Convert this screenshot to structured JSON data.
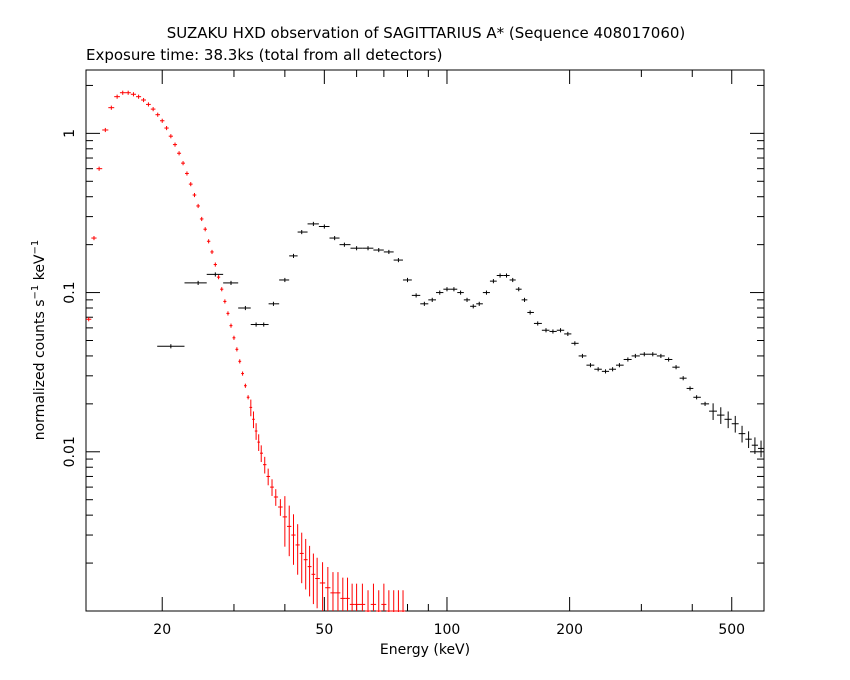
{
  "chart_data": {
    "type": "scatter",
    "title": "SUZAKU HXD observation of SAGITTARIUS A* (Sequence 408017060)",
    "subtitle": "Exposure time: 38.3ks (total from all detectors)",
    "xlabel": "Energy (keV)",
    "ylabel_main": "normalized counts s",
    "ylabel_sup1": "−1",
    "ylabel_mid": " keV",
    "ylabel_sup2": "−1",
    "x_scale": "log",
    "y_scale": "log",
    "xlim": [
      13,
      600
    ],
    "ylim": [
      0.001,
      2.5
    ],
    "x_ticks": [
      20,
      50,
      100,
      200,
      500
    ],
    "x_tick_labels": [
      "20",
      "50",
      "100",
      "200",
      "500"
    ],
    "y_ticks": [
      1,
      0.1,
      0.01
    ],
    "y_tick_labels": [
      "1",
      "0.1",
      "0.01"
    ],
    "grid": false,
    "series": [
      {
        "color": "#ff0000",
        "points": [
          [
            13.2,
            0.068
          ],
          [
            13.6,
            0.22
          ],
          [
            14.0,
            0.6
          ],
          [
            14.5,
            1.05
          ],
          [
            15.0,
            1.45
          ],
          [
            15.5,
            1.7
          ],
          [
            16.0,
            1.8
          ],
          [
            16.5,
            1.8
          ],
          [
            17.0,
            1.76
          ],
          [
            17.5,
            1.7
          ],
          [
            18.0,
            1.62
          ],
          [
            18.5,
            1.52
          ],
          [
            19.0,
            1.42
          ],
          [
            19.5,
            1.31
          ],
          [
            20.0,
            1.2
          ],
          [
            20.5,
            1.08
          ],
          [
            21.0,
            0.96
          ],
          [
            21.5,
            0.85
          ],
          [
            22.0,
            0.75
          ],
          [
            22.5,
            0.65
          ],
          [
            23.0,
            0.56
          ],
          [
            23.5,
            0.48
          ],
          [
            24.0,
            0.41
          ],
          [
            24.5,
            0.35
          ],
          [
            25.0,
            0.29
          ],
          [
            25.5,
            0.25
          ],
          [
            26.0,
            0.21
          ],
          [
            26.5,
            0.18
          ],
          [
            27.0,
            0.15
          ],
          [
            27.5,
            0.125
          ],
          [
            28.0,
            0.105
          ],
          [
            28.5,
            0.088
          ],
          [
            29.0,
            0.074
          ],
          [
            29.5,
            0.062
          ],
          [
            30.0,
            0.052
          ],
          [
            30.5,
            0.044
          ],
          [
            31.0,
            0.037
          ],
          [
            31.5,
            0.031
          ],
          [
            32.0,
            0.026
          ],
          [
            32.5,
            0.022
          ],
          [
            33.0,
            0.019
          ],
          [
            33.5,
            0.016
          ],
          [
            34.0,
            0.0135
          ],
          [
            34.5,
            0.0115
          ],
          [
            35.0,
            0.0098
          ],
          [
            35.7,
            0.0083
          ],
          [
            36.4,
            0.007
          ],
          [
            37.2,
            0.006
          ],
          [
            38.0,
            0.0052
          ],
          [
            39.0,
            0.0045
          ],
          [
            40.0,
            0.0039
          ],
          [
            41.0,
            0.0034
          ],
          [
            42.0,
            0.003
          ],
          [
            43.0,
            0.0026
          ],
          [
            44.0,
            0.0023
          ],
          [
            45.0,
            0.0021
          ],
          [
            46.0,
            0.0019
          ],
          [
            47.0,
            0.0017
          ],
          [
            48.0,
            0.0016
          ],
          [
            49.5,
            0.0015
          ],
          [
            51.0,
            0.0014
          ],
          [
            52.5,
            0.0013
          ],
          [
            54.0,
            0.0013
          ],
          [
            55.5,
            0.0012
          ],
          [
            57.0,
            0.0012
          ],
          [
            58.5,
            0.0011
          ],
          [
            60.0,
            0.0011
          ],
          [
            62.0,
            0.0011
          ],
          [
            64.0,
            0.001
          ],
          [
            66.0,
            0.0011
          ],
          [
            68.0,
            0.001
          ],
          [
            70.0,
            0.0011
          ],
          [
            72.0,
            0.001
          ],
          [
            74.0,
            0.001
          ],
          [
            76.0,
            0.001
          ],
          [
            78.0,
            0.001
          ]
        ]
      },
      {
        "color": "#000000",
        "points": [
          [
            21.0,
            0.046
          ],
          [
            24.5,
            0.115
          ],
          [
            27.0,
            0.13
          ],
          [
            29.5,
            0.115
          ],
          [
            32.0,
            0.08
          ],
          [
            34.0,
            0.063
          ],
          [
            35.5,
            0.063
          ],
          [
            37.5,
            0.085
          ],
          [
            40.0,
            0.12
          ],
          [
            42.0,
            0.17
          ],
          [
            44.0,
            0.24
          ],
          [
            47.0,
            0.27
          ],
          [
            50.0,
            0.26
          ],
          [
            53.0,
            0.22
          ],
          [
            56.0,
            0.2
          ],
          [
            60.0,
            0.19
          ],
          [
            64.0,
            0.19
          ],
          [
            68.0,
            0.185
          ],
          [
            72.0,
            0.18
          ],
          [
            76.0,
            0.16
          ],
          [
            80.0,
            0.12
          ],
          [
            84.0,
            0.096
          ],
          [
            88.0,
            0.085
          ],
          [
            92.0,
            0.09
          ],
          [
            96.0,
            0.1
          ],
          [
            100.0,
            0.105
          ],
          [
            104.0,
            0.105
          ],
          [
            108.0,
            0.1
          ],
          [
            112.0,
            0.09
          ],
          [
            116.0,
            0.082
          ],
          [
            120.0,
            0.085
          ],
          [
            125.0,
            0.1
          ],
          [
            130.0,
            0.118
          ],
          [
            135.0,
            0.128
          ],
          [
            140.0,
            0.128
          ],
          [
            145.0,
            0.12
          ],
          [
            150.0,
            0.105
          ],
          [
            155.0,
            0.09
          ],
          [
            160.0,
            0.075
          ],
          [
            167.0,
            0.064
          ],
          [
            175.0,
            0.058
          ],
          [
            182.0,
            0.057
          ],
          [
            190.0,
            0.058
          ],
          [
            198.0,
            0.055
          ],
          [
            206.0,
            0.048
          ],
          [
            215.0,
            0.04
          ],
          [
            225.0,
            0.035
          ],
          [
            235.0,
            0.033
          ],
          [
            245.0,
            0.032
          ],
          [
            255.0,
            0.033
          ],
          [
            265.0,
            0.035
          ],
          [
            278.0,
            0.038
          ],
          [
            290.0,
            0.04
          ],
          [
            305.0,
            0.041
          ],
          [
            320.0,
            0.041
          ],
          [
            335.0,
            0.04
          ],
          [
            350.0,
            0.038
          ],
          [
            365.0,
            0.034
          ],
          [
            380.0,
            0.029
          ],
          [
            395.0,
            0.025
          ],
          [
            410.0,
            0.022
          ],
          [
            430.0,
            0.02
          ],
          [
            450.0,
            0.018
          ],
          [
            470.0,
            0.017
          ],
          [
            490.0,
            0.016
          ],
          [
            510.0,
            0.015
          ],
          [
            530.0,
            0.013
          ],
          [
            550.0,
            0.012
          ],
          [
            570.0,
            0.011
          ],
          [
            590.0,
            0.0105
          ]
        ]
      }
    ]
  }
}
